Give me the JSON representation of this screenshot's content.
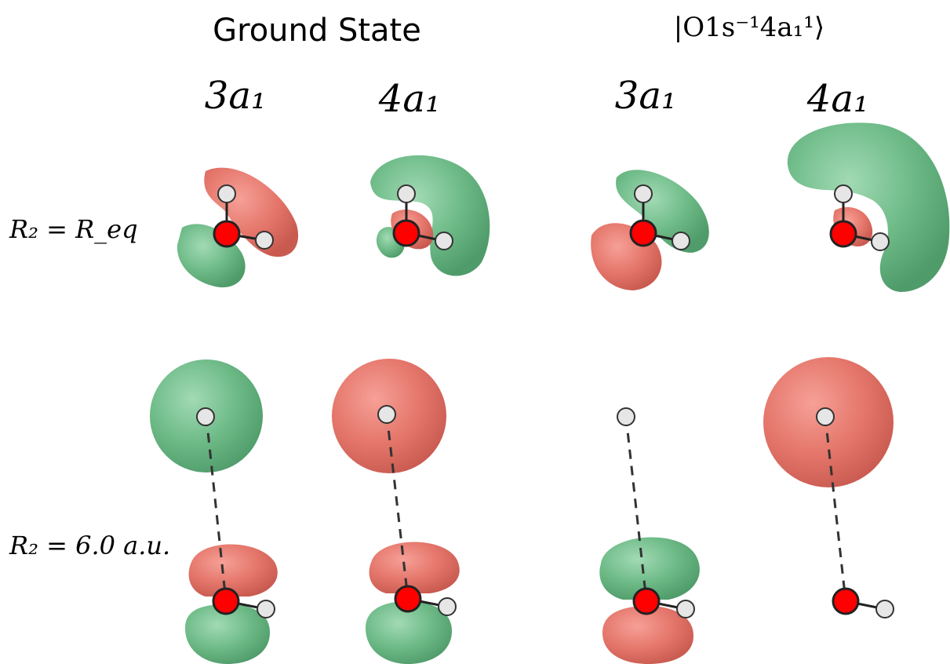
{
  "headers": {
    "ground_state": "Ground State",
    "excited_state": "|O1s⁻¹4a₁¹⟩"
  },
  "orbitals": {
    "col1": "3a₁",
    "col2": "4a₁",
    "col3": "3a₁",
    "col4": "4a₁"
  },
  "rows": {
    "row1_label": "R₂ = R_eq",
    "row2_label": "R₂ = 6.0  a.u."
  },
  "colors": {
    "positive_lobe": "#e5776c",
    "negative_lobe": "#6ebb88",
    "oxygen": "#ff0000",
    "hydrogen": "#e6e6e6"
  }
}
